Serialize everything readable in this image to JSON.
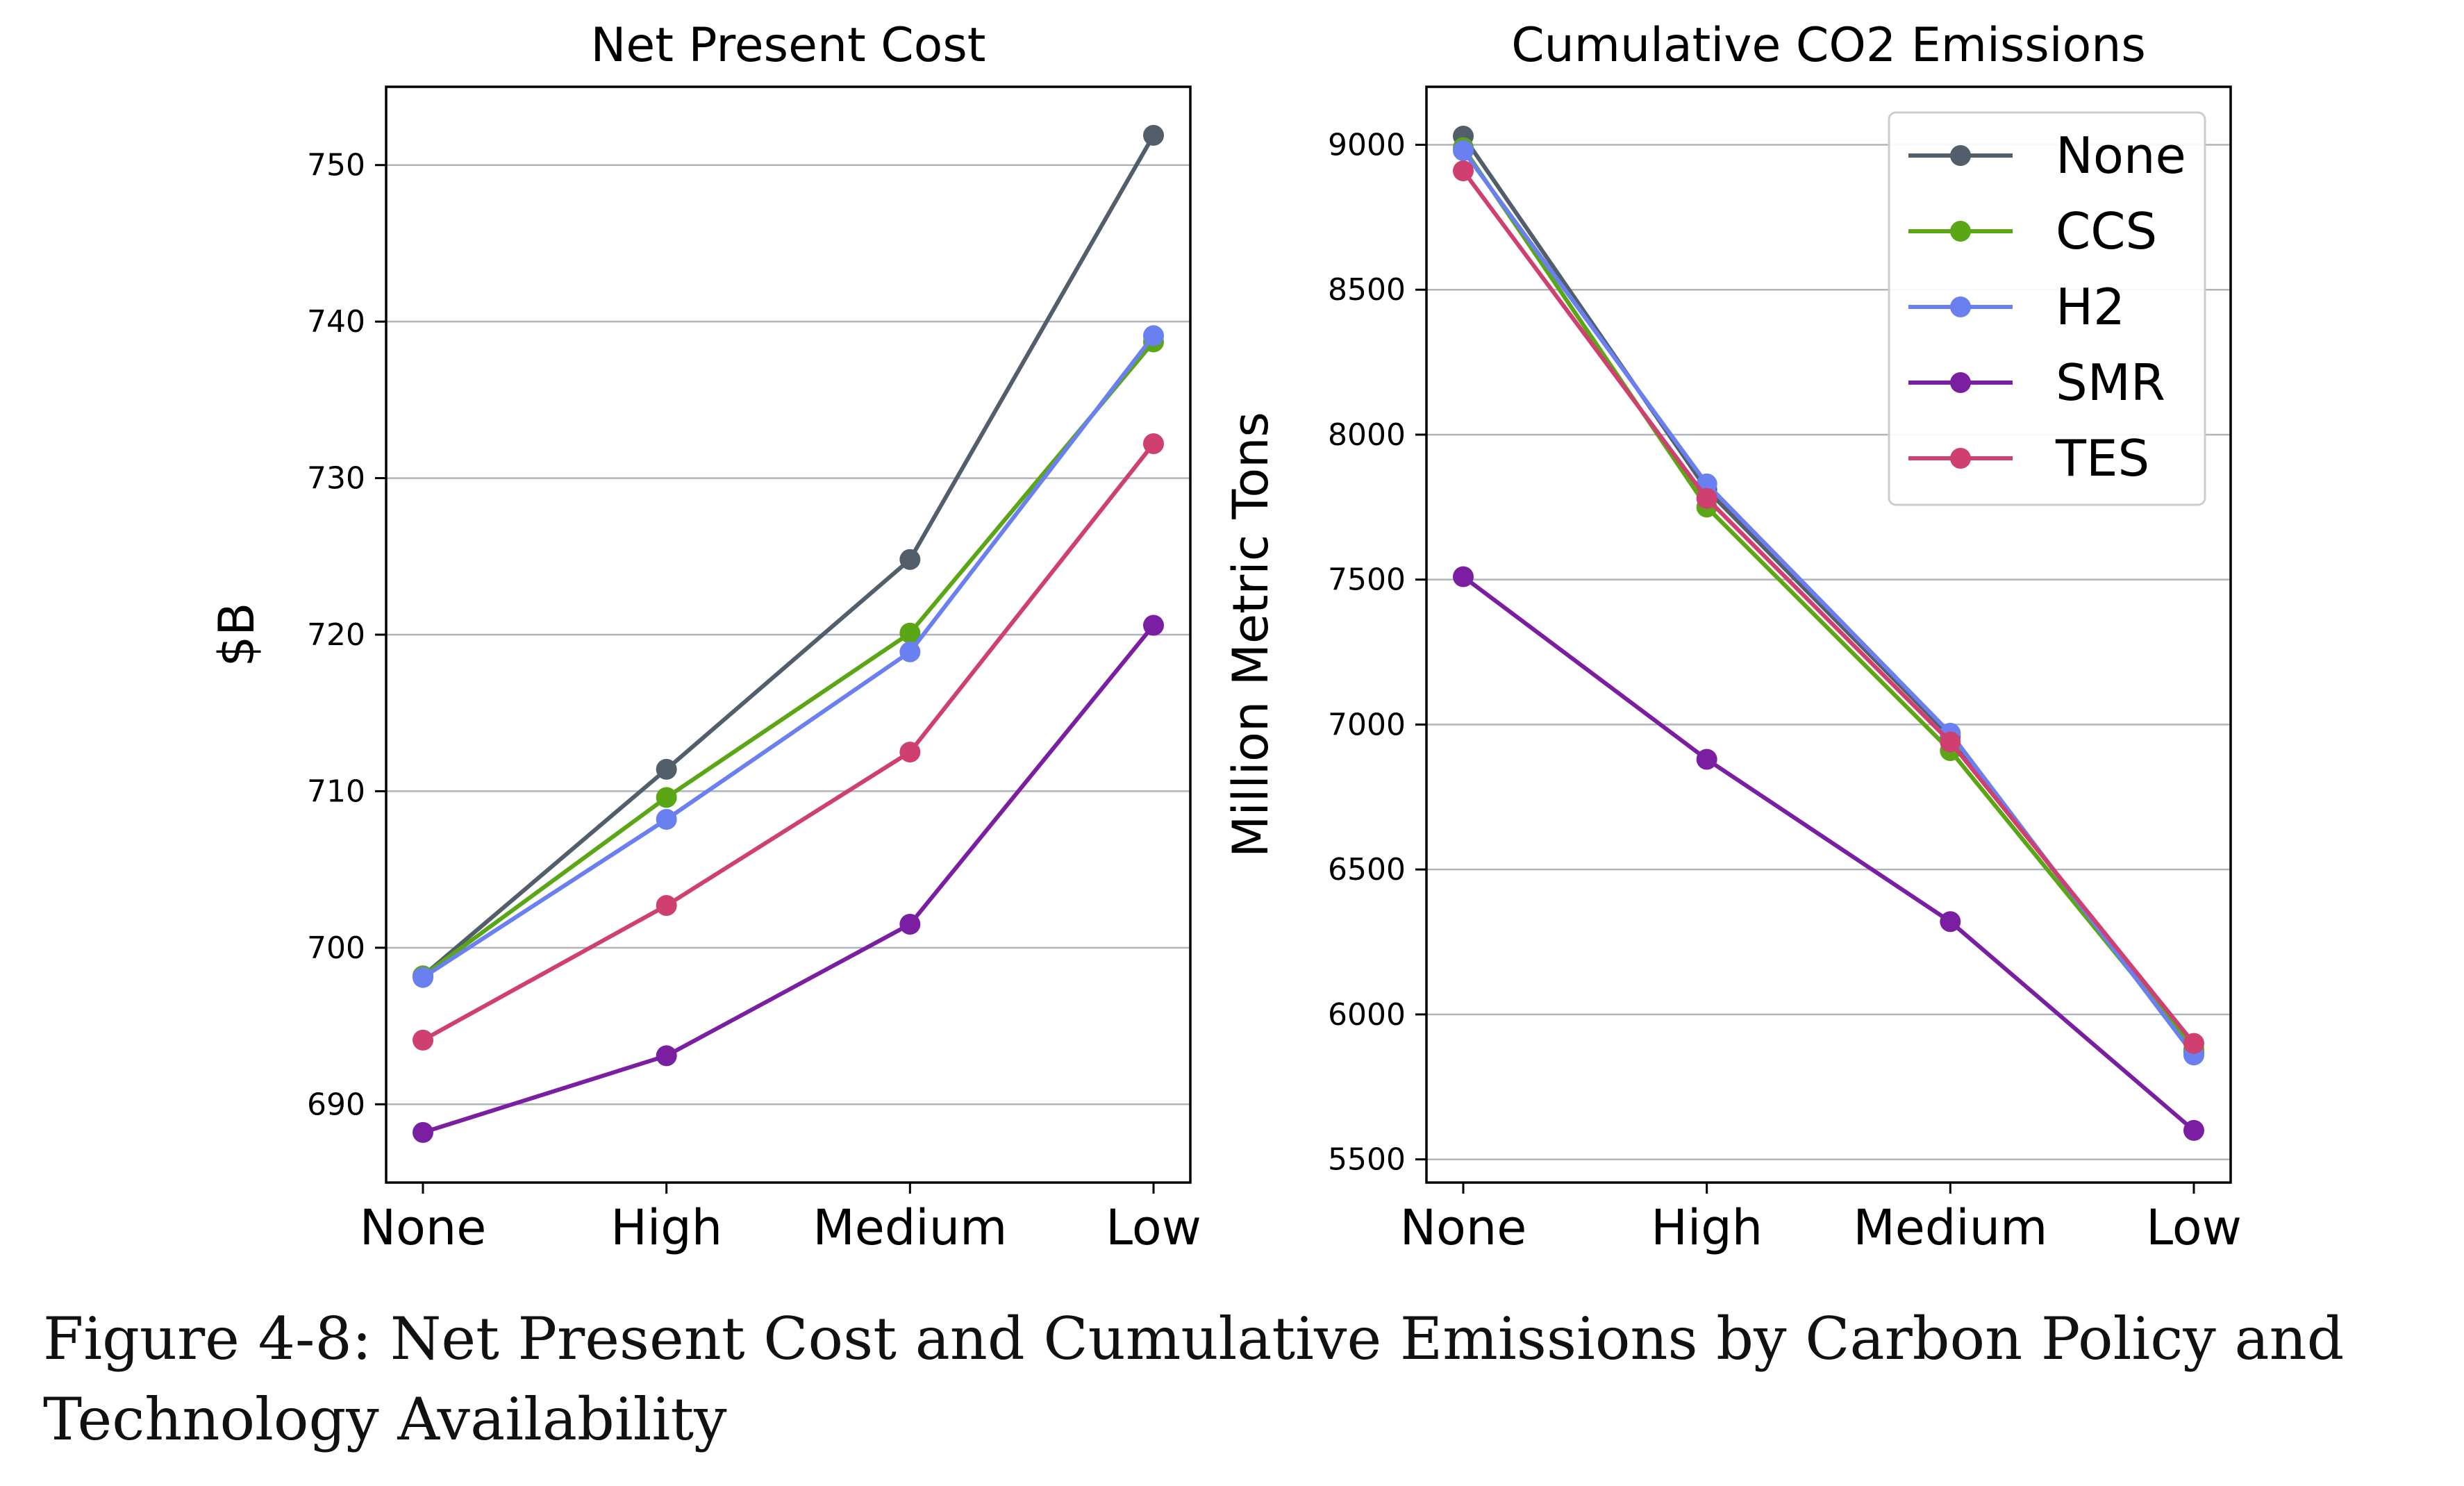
{
  "chart_data": [
    {
      "type": "line",
      "title": "Net Present Cost",
      "xlabel": "",
      "ylabel": "$B",
      "categories": [
        "None",
        "High",
        "Medium",
        "Low"
      ],
      "ylim": [
        685,
        755
      ],
      "yticks": [
        690,
        700,
        710,
        720,
        730,
        740,
        750
      ],
      "grid": "horizontal",
      "series": [
        {
          "name": "None",
          "color": "#525e69",
          "values": [
            698.2,
            711.4,
            724.8,
            751.9
          ]
        },
        {
          "name": "CCS",
          "color": "#5aa614",
          "values": [
            698.2,
            709.6,
            720.1,
            738.7
          ]
        },
        {
          "name": "H2",
          "color": "#6a7ff0",
          "values": [
            698.1,
            708.2,
            718.9,
            739.1
          ]
        },
        {
          "name": "SMR",
          "color": "#7a1fa2",
          "values": [
            688.2,
            693.1,
            701.5,
            720.6
          ]
        },
        {
          "name": "TES",
          "color": "#cf3f6f",
          "values": [
            694.1,
            702.7,
            712.5,
            732.2
          ]
        }
      ]
    },
    {
      "type": "line",
      "title": "Cumulative CO2 Emissions",
      "xlabel": "",
      "ylabel": "Million Metric Tons",
      "categories": [
        "None",
        "High",
        "Medium",
        "Low"
      ],
      "ylim": [
        5420,
        9200
      ],
      "yticks": [
        5500,
        6000,
        6500,
        7000,
        7500,
        8000,
        8500,
        9000
      ],
      "grid": "horizontal",
      "legend": "top-right",
      "series": [
        {
          "name": "None",
          "color": "#525e69",
          "values": [
            9030,
            7810,
            6960,
            5870
          ]
        },
        {
          "name": "CCS",
          "color": "#5aa614",
          "values": [
            8990,
            7750,
            6910,
            5880
          ]
        },
        {
          "name": "H2",
          "color": "#6a7ff0",
          "values": [
            8980,
            7830,
            6970,
            5860
          ]
        },
        {
          "name": "SMR",
          "color": "#7a1fa2",
          "values": [
            7510,
            6880,
            6320,
            5600
          ]
        },
        {
          "name": "TES",
          "color": "#cf3f6f",
          "values": [
            8910,
            7780,
            6940,
            5900
          ]
        }
      ]
    }
  ],
  "caption": "Figure 4-8: Net Present Cost and Cumulative Emissions by Carbon Policy and Technology Availability"
}
